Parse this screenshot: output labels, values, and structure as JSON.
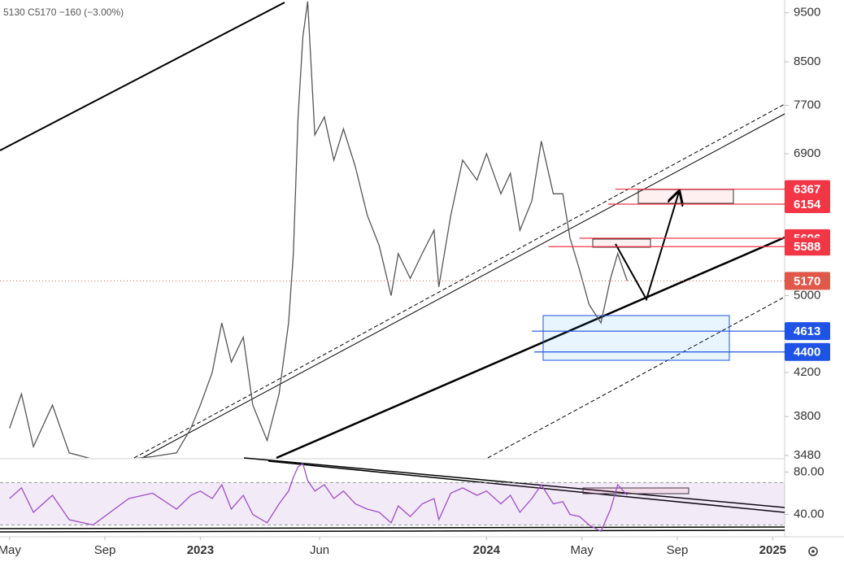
{
  "chart_data": [
    {
      "type": "line",
      "legend_text": "5130 C5170 −160 (−3.00%)",
      "color": "#555555",
      "log_scale": true,
      "x": [
        0,
        0.5,
        1,
        1.8,
        2.5,
        3.5,
        5,
        6,
        7,
        7.6,
        8,
        8.5,
        8.9,
        9.3,
        9.8,
        10.2,
        10.8,
        11.3,
        11.7,
        11.9,
        12.1,
        12.3,
        12.5,
        12.8,
        13.2,
        13.6,
        14,
        14.5,
        15,
        15.5,
        16,
        16.3,
        16.8,
        17.3,
        17.8,
        18,
        18.5,
        19,
        19.6,
        20,
        20.6,
        21,
        21.4,
        21.9,
        22.3,
        22.8,
        23.2,
        23.5,
        23.9,
        24.3,
        24.8,
        25.2,
        25.5,
        25.9
      ],
      "values": [
        3700,
        4000,
        3550,
        3900,
        3500,
        3450,
        3450,
        3470,
        3500,
        3700,
        3900,
        4200,
        4700,
        4300,
        4550,
        3900,
        3600,
        4000,
        4700,
        5500,
        7500,
        9000,
        9750,
        7200,
        7500,
        6800,
        7300,
        6700,
        6000,
        5600,
        5000,
        5500,
        5200,
        5500,
        5800,
        5100,
        6000,
        6800,
        6500,
        6900,
        6300,
        6600,
        5800,
        6200,
        7100,
        6300,
        6300,
        5700,
        5300,
        4900,
        4700,
        5200,
        5500,
        5170
      ],
      "xlim": [
        -0.4,
        32.5
      ],
      "xticks": [
        {
          "value": 0,
          "label": "May"
        },
        {
          "value": 4,
          "label": "Sep"
        },
        {
          "value": 8,
          "label": "2023"
        },
        {
          "value": 13,
          "label": "Jun"
        },
        {
          "value": 20,
          "label": "2024"
        },
        {
          "value": 24,
          "label": "May"
        },
        {
          "value": 28,
          "label": "Sep"
        },
        {
          "value": 32,
          "label": "2025"
        }
      ],
      "ylim": [
        3460,
        9780
      ],
      "yticks": [
        9500,
        8500,
        7700,
        6900,
        5000,
        4200,
        3800,
        3480
      ],
      "levels": [
        {
          "value": 6367,
          "color": "#f23645",
          "start": 25.4
        },
        {
          "value": 6154,
          "color": "#f23645",
          "start": 25.1
        },
        {
          "value": 5696,
          "color": "#f23645",
          "start": 23.9
        },
        {
          "value": 5588,
          "color": "#f23645",
          "start": 22.6
        },
        {
          "value": 5170,
          "color": "#e0584a",
          "start": -0.4,
          "dotted": true
        },
        {
          "value": 4613,
          "color": "#1e53e5",
          "start": 21.9
        },
        {
          "value": 4400,
          "color": "#1e53e5",
          "start": 22.0
        }
      ]
    },
    {
      "type": "line",
      "color": "#9c4fc4",
      "x": [
        0,
        0.5,
        1,
        1.8,
        2.5,
        3.5,
        5,
        6,
        7,
        7.6,
        8,
        8.5,
        8.9,
        9.3,
        9.8,
        10.2,
        10.8,
        11.3,
        11.7,
        11.9,
        12.1,
        12.3,
        12.5,
        12.8,
        13.2,
        13.6,
        14,
        14.5,
        15,
        15.5,
        16,
        16.3,
        16.8,
        17.3,
        17.8,
        18,
        18.5,
        19,
        19.6,
        20,
        20.6,
        21,
        21.4,
        21.9,
        22.3,
        22.8,
        23.2,
        23.5,
        23.9,
        24.3,
        24.8,
        25.2,
        25.5,
        25.9
      ],
      "values": [
        55,
        65,
        42,
        58,
        35,
        30,
        55,
        60,
        45,
        58,
        62,
        55,
        68,
        45,
        58,
        40,
        32,
        50,
        62,
        75,
        85,
        88,
        72,
        62,
        68,
        55,
        62,
        50,
        45,
        42,
        32,
        48,
        38,
        50,
        55,
        35,
        60,
        65,
        58,
        62,
        50,
        58,
        42,
        55,
        68,
        50,
        52,
        40,
        38,
        30,
        24,
        45,
        68,
        58
      ],
      "ylim": [
        21.2,
        91.8
      ],
      "yticks": [
        {
          "value": 80,
          "label": "80.00"
        },
        {
          "value": 40,
          "label": "40.00"
        }
      ],
      "band": [
        30,
        70
      ]
    }
  ]
}
